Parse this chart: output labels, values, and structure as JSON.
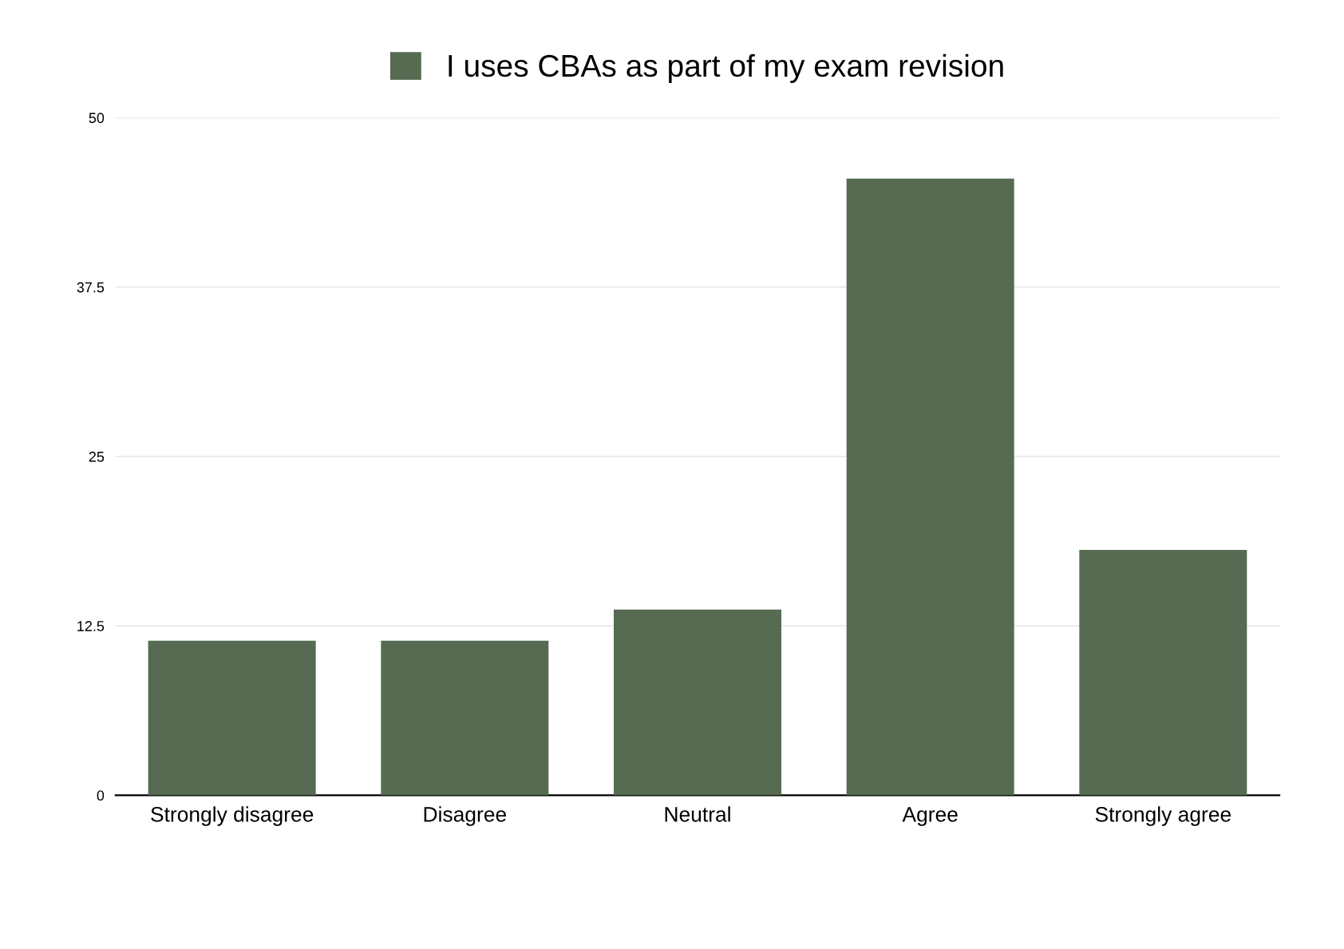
{
  "chart_data": {
    "type": "bar",
    "categories": [
      "Strongly disagree",
      "Disagree",
      "Neutral",
      "Agree",
      "Strongly agree"
    ],
    "series": [
      {
        "name": "I uses CBAs as part of my exam revision",
        "color": "#566b52",
        "values": [
          11.4,
          11.4,
          13.7,
          45.5,
          18.1
        ]
      }
    ],
    "ylim": [
      0,
      50
    ],
    "yticks": [
      0,
      {
        "value": 12.5,
        "label": "12.5"
      },
      25,
      {
        "value": 37.5,
        "label": "37.5"
      },
      50
    ],
    "grid": "y",
    "legend": "top"
  }
}
